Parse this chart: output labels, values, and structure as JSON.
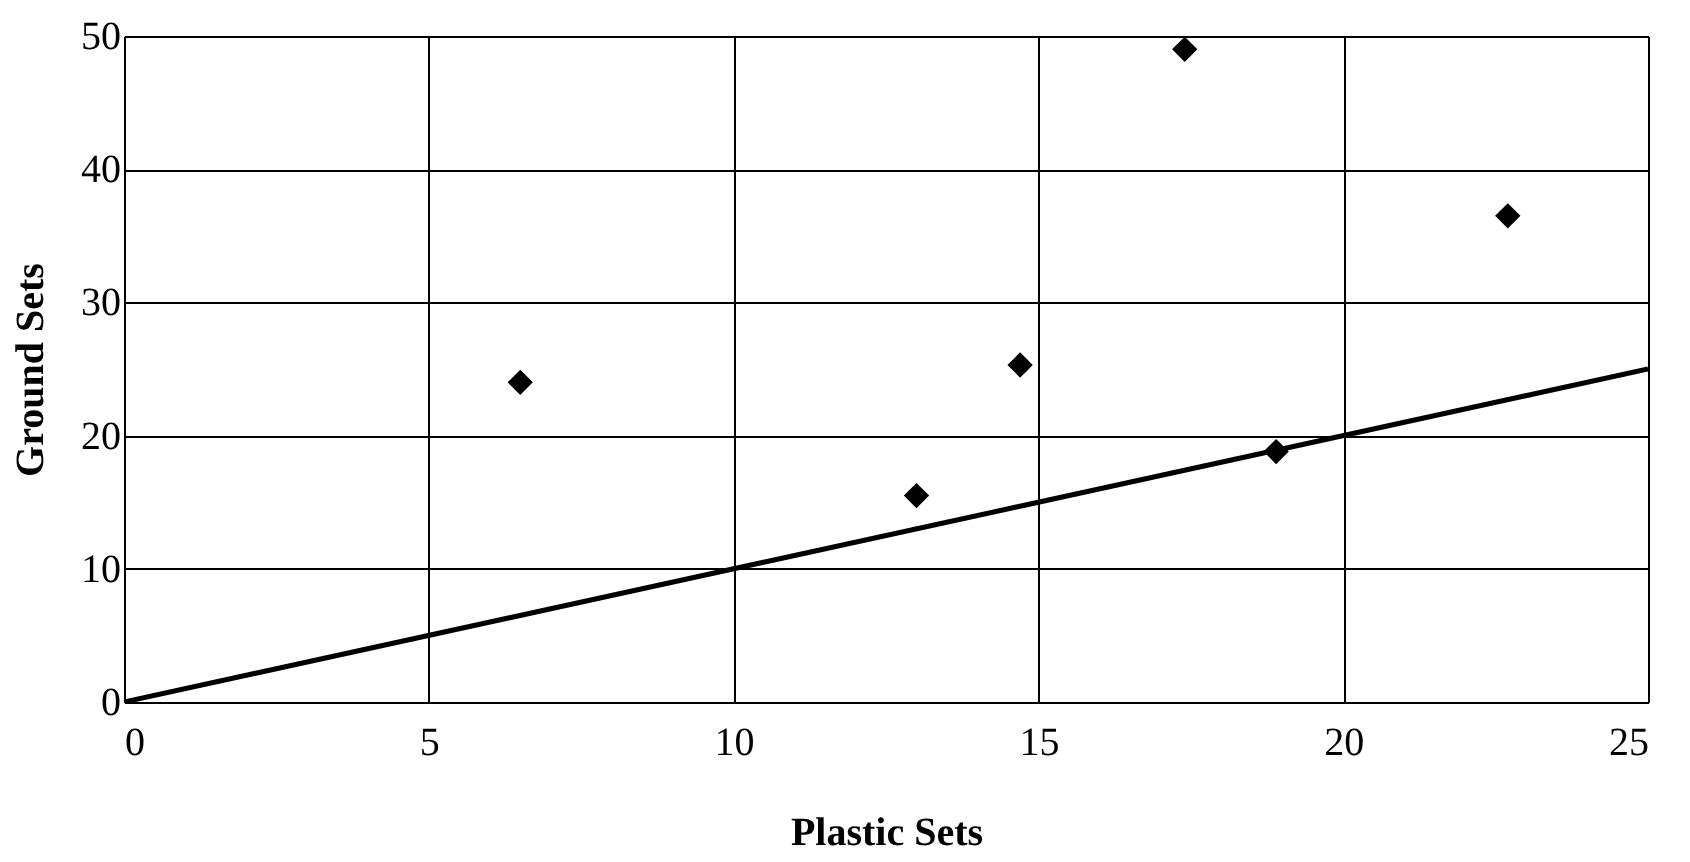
{
  "chart_data": {
    "type": "scatter",
    "xlabel": "Plastic Sets",
    "ylabel": "Ground Sets",
    "xlim": [
      0,
      25
    ],
    "xticks": [
      0,
      5,
      10,
      15,
      20,
      25
    ],
    "ylim": [
      0,
      50
    ],
    "yticks": [
      0,
      10,
      20,
      30,
      40,
      50
    ],
    "grid": true,
    "marker": "diamond",
    "series": [
      {
        "color": "#000000",
        "x": [
          6.5,
          13,
          14.7,
          17.4,
          18.9,
          22.7
        ],
        "values": [
          24,
          15.5,
          25.3,
          49,
          18.8,
          36.5
        ]
      },
      {
        "type": "line",
        "color": "#000000",
        "x": [
          0,
          25
        ],
        "values": [
          0,
          25
        ],
        "line_style": "solid",
        "marker": "none"
      }
    ]
  }
}
